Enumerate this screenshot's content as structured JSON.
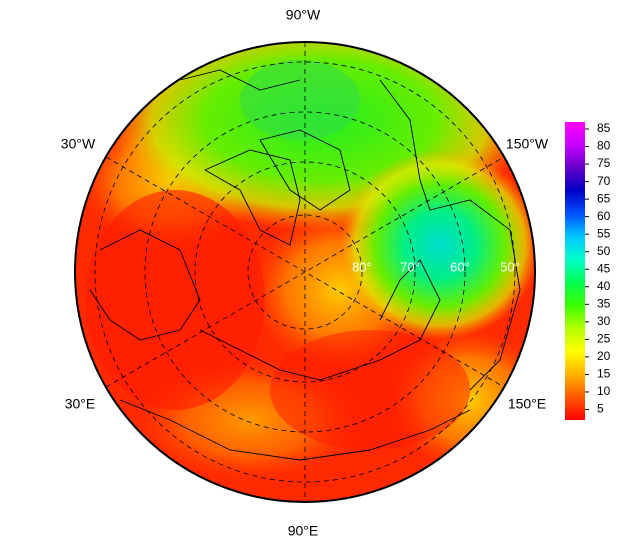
{
  "longitude_labels": [
    "90°W",
    "30°W",
    "150°W",
    "30°E",
    "150°E",
    "90°E"
  ],
  "latitude_labels": [
    "80°",
    "70°",
    "60°",
    "50°"
  ],
  "colorbar": {
    "lim": [
      2,
      87
    ],
    "ticks": [
      5,
      10,
      15,
      20,
      25,
      30,
      35,
      40,
      45,
      50,
      55,
      60,
      65,
      70,
      75,
      80,
      85
    ],
    "colors": [
      "#ff0000",
      "#ff5a00",
      "#ffb400",
      "#ffff00",
      "#b4ff00",
      "#3cff00",
      "#00ff50",
      "#00ffc8",
      "#00c8ff",
      "#0050ff",
      "#0000c8",
      "#6400c8",
      "#c800ff",
      "#ff00ff"
    ]
  }
}
